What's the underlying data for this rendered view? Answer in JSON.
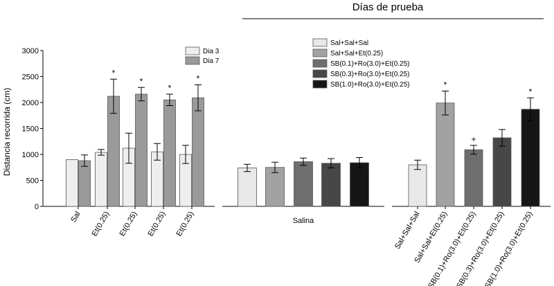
{
  "header": {
    "title": "Días de prueba"
  },
  "colors": {
    "dia3": "#eeeeee",
    "dia7": "#9a9a9a",
    "g1": "#e8e8e8",
    "g2": "#a2a2a2",
    "g3": "#6e6e6e",
    "g4": "#474747",
    "g5": "#161616"
  },
  "chart_data": [
    {
      "type": "bar",
      "ylabel": "Distancia recorrida (cm)",
      "ylim": [
        0,
        3000
      ],
      "yticks": [
        0,
        500,
        1000,
        1500,
        2000,
        2500,
        3000
      ],
      "categories": [
        "Sal",
        "Et(0.25)",
        "Et(0.25)",
        "Et(0.25)",
        "Et(0.25)"
      ],
      "legend_placement": "top-right",
      "series": [
        {
          "name": "Dia 3",
          "color": "#eeeeee",
          "values": [
            900,
            1040,
            1120,
            1050,
            1000
          ],
          "errors": [
            0,
            55,
            290,
            160,
            175
          ],
          "sig": [
            "",
            "",
            "",
            "",
            ""
          ]
        },
        {
          "name": "Dia 7",
          "color": "#9a9a9a",
          "values": [
            880,
            2120,
            2160,
            2050,
            2090
          ],
          "errors": [
            110,
            330,
            130,
            110,
            250
          ],
          "sig": [
            "",
            "*",
            "*",
            "*",
            "*"
          ]
        }
      ]
    },
    {
      "type": "bar",
      "ylim": [
        0,
        3000
      ],
      "xlabel": "Salina",
      "legend_placement": "top-right",
      "categories": [
        "Sal+Sal+Sal",
        "Sal+Sal+Et(0.25)",
        "SB(0.1)+Ro(3.0)+Et(0.25)",
        "SB(0.3)+Ro(3.0)+Et(0.25)",
        "SB(1.0)+Ro(3.0)+Et(0.25)"
      ],
      "series": [
        {
          "values": [
            740,
            750,
            860,
            830,
            840
          ],
          "errors": [
            70,
            100,
            70,
            90,
            100
          ]
        }
      ]
    },
    {
      "type": "bar",
      "ylim": [
        0,
        3000
      ],
      "categories": [
        "Sal+Sal+Sal",
        "Sal+Sal+Et(0.25)",
        "SB(0.1)+Ro(3.0)+Et(0.25)",
        "SB(0.3)+Ro(3.0)+Et(0.25)",
        "SB(1.0)+Ro(3.0)+Et(0.25)"
      ],
      "series": [
        {
          "values": [
            800,
            1990,
            1090,
            1320,
            1870
          ],
          "errors": [
            90,
            230,
            85,
            160,
            220
          ],
          "sig": [
            "",
            "*",
            "+",
            "",
            "*"
          ]
        }
      ]
    }
  ]
}
